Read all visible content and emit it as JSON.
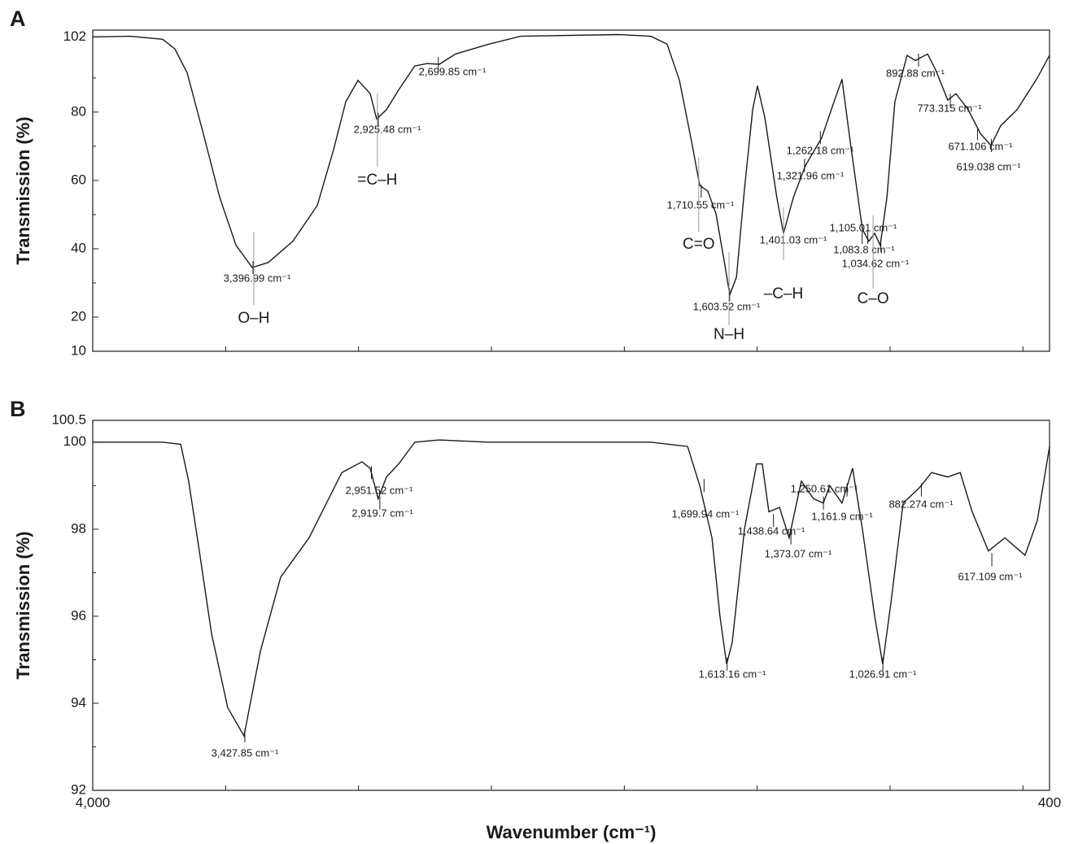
{
  "chart_data": [
    {
      "type": "line",
      "panel": "A",
      "y_label": "Transmission (%)",
      "color": "#1a1a1a",
      "xlim": [
        4000,
        400
      ],
      "ylim": [
        10,
        104
      ],
      "yticks": [
        10,
        20,
        40,
        60,
        80,
        102
      ],
      "yticks_minor": [
        30,
        50,
        70,
        90
      ],
      "xticks_minor": [
        3500,
        3000,
        2500,
        2000,
        1500,
        1000,
        500
      ],
      "x": [
        4000,
        3859,
        3737,
        3691,
        3645,
        3584,
        3522,
        3461,
        3400,
        3339,
        3247,
        3155,
        3094,
        3048,
        3002,
        2956,
        2932,
        2895,
        2849,
        2788,
        2742,
        2696,
        2635,
        2513,
        2390,
        2022,
        1900,
        1839,
        1793,
        1747,
        1716,
        1686,
        1655,
        1624,
        1603,
        1578,
        1548,
        1517,
        1499,
        1471,
        1426,
        1401,
        1364,
        1318,
        1257,
        1211,
        1181,
        1150,
        1104,
        1080,
        1058,
        1037,
        1012,
        982,
        936,
        905,
        859,
        829,
        783,
        752,
        706,
        660,
        620,
        584,
        522,
        446,
        400
      ],
      "values": [
        102,
        102.2,
        101.3,
        98.5,
        91.5,
        73.7,
        55,
        41,
        34.5,
        36,
        42.2,
        52.7,
        69,
        83,
        89.3,
        85.4,
        78,
        80.7,
        86.5,
        93.5,
        94.2,
        94,
        97,
        99.8,
        102.2,
        102.7,
        102.2,
        99.9,
        89.4,
        71.4,
        58.5,
        56.9,
        50.3,
        36.3,
        26.5,
        31.7,
        57.4,
        80.7,
        87.7,
        78.4,
        55,
        44.5,
        55,
        64.4,
        72.5,
        83,
        89.6,
        71.4,
        45.7,
        42.2,
        44.5,
        41,
        55,
        83,
        96.6,
        95.1,
        97,
        92.4,
        83.5,
        85.4,
        80.7,
        73.7,
        70.2,
        76,
        80.7,
        90,
        96.6
      ],
      "annotations": [
        {
          "label": "3,396.99 cm⁻¹",
          "x": 3396.99,
          "y": 34.5
        },
        {
          "label": "2,925.48 cm⁻¹",
          "x": 2925.48,
          "y": 77.9
        },
        {
          "label": "2,699.85 cm⁻¹",
          "x": 2699.85,
          "y": 94.2
        },
        {
          "label": "1,710.55 cm⁻¹",
          "x": 1710.55,
          "y": 56.9
        },
        {
          "label": "1,603.52 cm⁻¹",
          "x": 1603.52,
          "y": 26.5
        },
        {
          "label": "1,401.03 cm⁻¹",
          "x": 1401.03,
          "y": 44.5
        },
        {
          "label": "1,321.96 cm⁻¹",
          "x": 1321.96,
          "y": 64.4
        },
        {
          "label": "1,262.18 cm⁻¹",
          "x": 1262.18,
          "y": 72.5
        },
        {
          "label": "1,105.01 cm⁻¹",
          "x": 1105.01,
          "y": 43.3
        },
        {
          "label": "1,083.8 cm⁻¹",
          "x": 1083.8,
          "y": 43.3
        },
        {
          "label": "1,034.62 cm⁻¹",
          "x": 1034.62,
          "y": 41
        },
        {
          "label": "892.88 cm⁻¹",
          "x": 892.88,
          "y": 95.2
        },
        {
          "label": "773.315 cm⁻¹",
          "x": 773.315,
          "y": 83.5
        },
        {
          "label": "671.106 cm⁻¹",
          "x": 671.106,
          "y": 73.7
        },
        {
          "label": "619.038 cm⁻¹",
          "x": 619.038,
          "y": 70.2
        }
      ],
      "group_labels": [
        {
          "label": "O–H",
          "x": 3394
        },
        {
          "label": "=C–H",
          "x": 2929
        },
        {
          "label": "C=O",
          "x": 1720
        },
        {
          "label": "N–H",
          "x": 1606
        },
        {
          "label": "–C–H",
          "x": 1401
        },
        {
          "label": "C–O",
          "x": 1064
        }
      ]
    },
    {
      "type": "line",
      "panel": "B",
      "y_label": "Transmission (%)",
      "x_label": "Wavenumber (cm⁻¹)",
      "color": "#1a1a1a",
      "xlim": [
        4000,
        400
      ],
      "ylim": [
        92,
        100.5
      ],
      "yticks": [
        92,
        94,
        96,
        98,
        100,
        100.5
      ],
      "yticks_minor": [
        93,
        95,
        97,
        99
      ],
      "xticks": [
        {
          "value": 4000,
          "label": "4,000"
        },
        400
      ],
      "xticks_minor": [
        3500,
        3000,
        2500,
        2000,
        1500,
        1000,
        500
      ],
      "x": [
        4000,
        3737,
        3669,
        3639,
        3599,
        3553,
        3492,
        3431,
        3369,
        3293,
        3186,
        3063,
        2987,
        2956,
        2926,
        2895,
        2849,
        2788,
        2696,
        2512,
        2206,
        1900,
        1762,
        1716,
        1670,
        1640,
        1615,
        1594,
        1548,
        1502,
        1481,
        1456,
        1416,
        1380,
        1334,
        1288,
        1251,
        1227,
        1181,
        1141,
        1104,
        1058,
        1028,
        997,
        951,
        890,
        844,
        783,
        736,
        691,
        630,
        568,
        492,
        446,
        400
      ],
      "values": [
        100,
        100,
        99.95,
        99.1,
        97.5,
        95.6,
        93.9,
        93.25,
        95.2,
        96.9,
        97.8,
        99.3,
        99.55,
        99.4,
        98.7,
        99.2,
        99.5,
        100,
        100.05,
        100,
        100,
        100,
        99.9,
        99,
        97.8,
        96,
        94.9,
        95.4,
        98,
        99.5,
        99.5,
        98.4,
        98.5,
        97.8,
        99.1,
        98.7,
        98.6,
        99,
        98.6,
        99.4,
        98,
        96,
        94.9,
        96.3,
        98.6,
        98.95,
        99.3,
        99.2,
        99.3,
        98.4,
        97.5,
        97.8,
        97.4,
        98.2,
        99.9
      ],
      "annotations": [
        {
          "label": "3,427.85 cm⁻¹",
          "x": 3427.85,
          "y": 93.25
        },
        {
          "label": "2,951.52 cm⁻¹",
          "x": 2951.52,
          "y": 99.3
        },
        {
          "label": "2,919.7 cm⁻¹",
          "x": 2919.7,
          "y": 98.6
        },
        {
          "label": "1,699.94 cm⁻¹",
          "x": 1699.94,
          "y": 99
        },
        {
          "label": "1,613.16 cm⁻¹",
          "x": 1613.16,
          "y": 94.9
        },
        {
          "label": "1,438.64 cm⁻¹",
          "x": 1438.64,
          "y": 98.2
        },
        {
          "label": "1,373.07 cm⁻¹",
          "x": 1373.07,
          "y": 97.8
        },
        {
          "label": "1,250.61 cm⁻¹",
          "x": 1250.61,
          "y": 98.6
        },
        {
          "label": "1,161.9 cm⁻¹",
          "x": 1161.9,
          "y": 98.9
        },
        {
          "label": "882.274 cm⁻¹",
          "x": 882.274,
          "y": 98.9
        },
        {
          "label": "617.109 cm⁻¹",
          "x": 617.109,
          "y": 97.3
        },
        {
          "label": "1,026.91 cm⁻¹",
          "x": 1026.91,
          "y": 94.9
        }
      ]
    }
  ]
}
